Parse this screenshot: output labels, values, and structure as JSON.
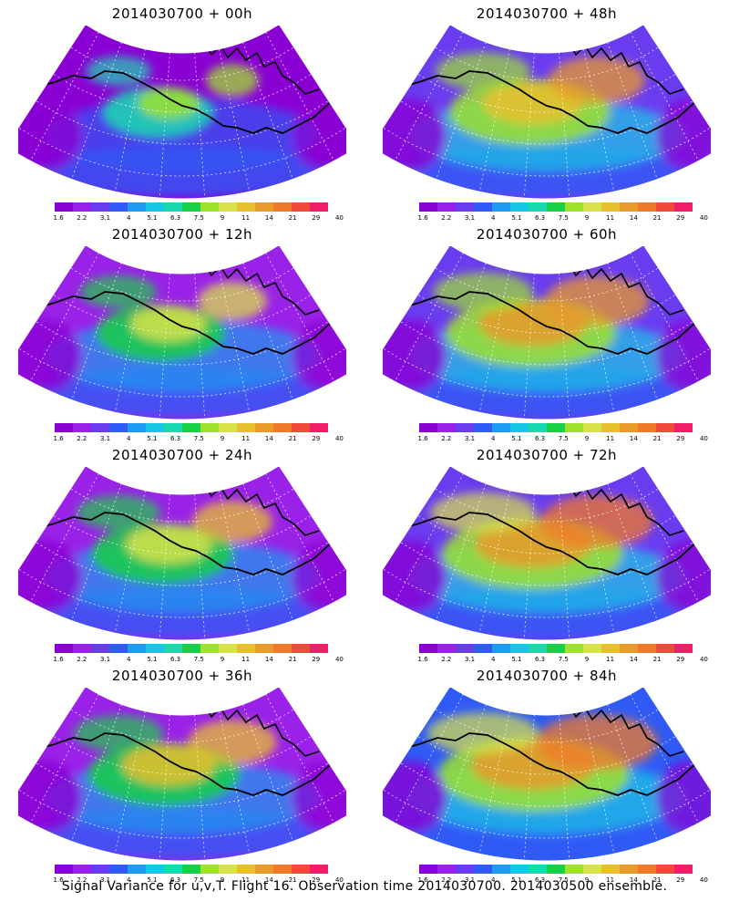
{
  "panels": [
    {
      "title": "2014030700 + 00h",
      "col": 0,
      "row": 0,
      "intensity": 0.15
    },
    {
      "title": "2014030700 + 48h",
      "col": 1,
      "row": 0,
      "intensity": 0.55
    },
    {
      "title": "2014030700 + 12h",
      "col": 0,
      "row": 1,
      "intensity": 0.3
    },
    {
      "title": "2014030700 + 60h",
      "col": 1,
      "row": 1,
      "intensity": 0.62
    },
    {
      "title": "2014030700 + 24h",
      "col": 0,
      "row": 2,
      "intensity": 0.4
    },
    {
      "title": "2014030700 + 72h",
      "col": 1,
      "row": 2,
      "intensity": 0.7
    },
    {
      "title": "2014030700 + 36h",
      "col": 0,
      "row": 3,
      "intensity": 0.48
    },
    {
      "title": "2014030700 + 84h",
      "col": 1,
      "row": 3,
      "intensity": 0.78
    }
  ],
  "colorbar": {
    "colors": [
      "#8a00d4",
      "#9a22e8",
      "#6a3cf0",
      "#2f5af5",
      "#1d9bf0",
      "#17c8e6",
      "#19d9b0",
      "#18d046",
      "#9ee22e",
      "#d8e24a",
      "#e8c02e",
      "#e89a2a",
      "#f07a2a",
      "#f04a3a",
      "#f01f6a"
    ],
    "labels": [
      "1.6",
      "2.2",
      "3.1",
      "4",
      "5.1",
      "6.3",
      "7.5",
      "9",
      "11",
      "14",
      "21",
      "29",
      "40"
    ]
  },
  "caption": "Signal Variance for u,v,T. Flight 16. Observation time 2014030700. 2014030500 ensemble."
}
